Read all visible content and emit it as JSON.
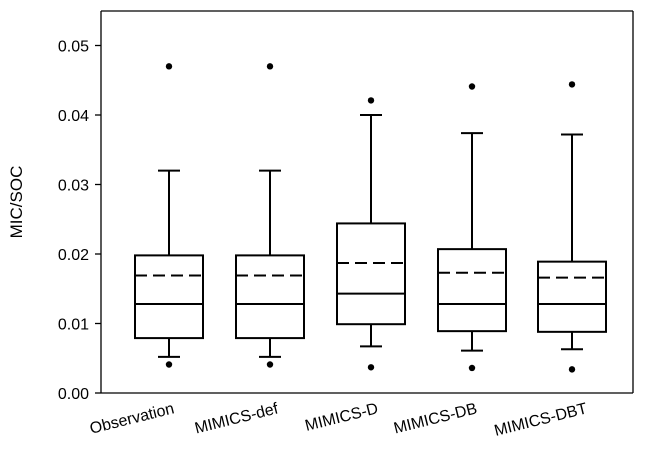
{
  "chart_data": {
    "type": "box",
    "ylabel": "MIC/SOC",
    "xlabel": "",
    "ylim": [
      0.0,
      0.055
    ],
    "yticks": [
      0.0,
      0.01,
      0.02,
      0.03,
      0.04,
      0.05
    ],
    "ytick_labels": [
      "0.00",
      "0.01",
      "0.02",
      "0.03",
      "0.04",
      "0.05"
    ],
    "grid": false,
    "legend": "none",
    "mean_line_style": "dashed",
    "median_line_style": "solid",
    "categories": [
      "Observation",
      "MIMICS-def",
      "MIMICS-D",
      "MIMICS-DB",
      "MIMICS-DBT"
    ],
    "boxes": [
      {
        "name": "Observation",
        "whisker_low": 0.0052,
        "q1": 0.0079,
        "median": 0.0128,
        "mean": 0.0169,
        "q3": 0.0198,
        "whisker_high": 0.032,
        "outliers": [
          0.0041,
          0.047
        ]
      },
      {
        "name": "MIMICS-def",
        "whisker_low": 0.0052,
        "q1": 0.0079,
        "median": 0.0128,
        "mean": 0.0169,
        "q3": 0.0198,
        "whisker_high": 0.032,
        "outliers": [
          0.0041,
          0.047
        ]
      },
      {
        "name": "MIMICS-D",
        "whisker_low": 0.0067,
        "q1": 0.0099,
        "median": 0.0143,
        "mean": 0.0187,
        "q3": 0.0244,
        "whisker_high": 0.04,
        "outliers": [
          0.0037,
          0.0421
        ]
      },
      {
        "name": "MIMICS-DB",
        "whisker_low": 0.0061,
        "q1": 0.0089,
        "median": 0.0128,
        "mean": 0.0173,
        "q3": 0.0207,
        "whisker_high": 0.0374,
        "outliers": [
          0.0036,
          0.0441
        ]
      },
      {
        "name": "MIMICS-DBT",
        "whisker_low": 0.0063,
        "q1": 0.0088,
        "median": 0.0128,
        "mean": 0.0166,
        "q3": 0.0189,
        "whisker_high": 0.0372,
        "outliers": [
          0.0034,
          0.0444
        ]
      }
    ]
  }
}
